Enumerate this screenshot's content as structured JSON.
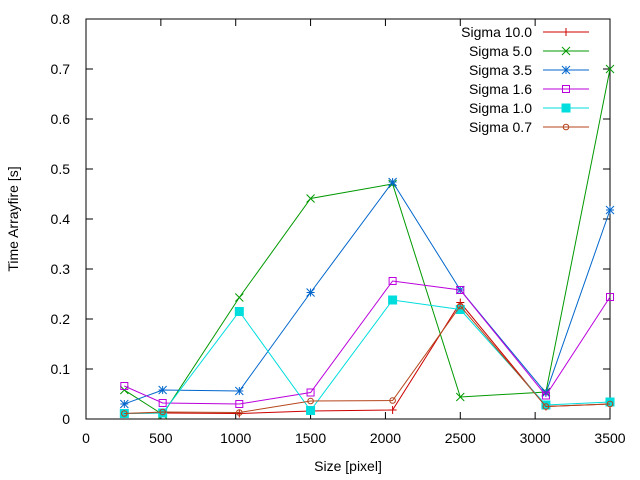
{
  "chart_data": {
    "type": "line",
    "xlabel": "Size [pixel]",
    "ylabel": "Time Arrayfire [s]",
    "xlim": [
      0,
      3500
    ],
    "ylim": [
      0,
      0.8
    ],
    "xticks": [
      0,
      500,
      1000,
      1500,
      2000,
      2500,
      3000,
      3500
    ],
    "yticks": [
      0,
      0.1,
      0.2,
      0.3,
      0.4,
      0.5,
      0.6,
      0.7,
      0.8
    ],
    "grid": false,
    "legend_position": "top-right",
    "x": [
      256,
      512,
      1024,
      1500,
      2048,
      2500,
      3072,
      3500
    ],
    "series": [
      {
        "name": "Sigma 10.0",
        "color": "#cc0000",
        "marker": "plus",
        "values": [
          0.011,
          0.012,
          0.011,
          0.016,
          0.018,
          0.233,
          0.025,
          0.03
        ]
      },
      {
        "name": "Sigma 5.0",
        "color": "#009900",
        "marker": "cross",
        "values": [
          0.058,
          0.009,
          0.243,
          0.441,
          0.47,
          0.044,
          0.054,
          0.7
        ]
      },
      {
        "name": "Sigma 3.5",
        "color": "#0066cc",
        "marker": "star",
        "values": [
          0.03,
          0.058,
          0.056,
          0.253,
          0.474,
          0.258,
          0.052,
          0.418
        ]
      },
      {
        "name": "Sigma 1.6",
        "color": "#bb00dd",
        "marker": "open-square",
        "values": [
          0.066,
          0.032,
          0.03,
          0.053,
          0.276,
          0.258,
          0.047,
          0.244
        ]
      },
      {
        "name": "Sigma 1.0",
        "color": "#00dddd",
        "marker": "filled-square",
        "values": [
          0.011,
          0.012,
          0.215,
          0.017,
          0.238,
          0.219,
          0.028,
          0.034
        ]
      },
      {
        "name": "Sigma 0.7",
        "color": "#b5451b",
        "marker": "open-circle",
        "values": [
          0.011,
          0.014,
          0.013,
          0.036,
          0.037,
          0.226,
          0.025,
          0.03
        ]
      }
    ]
  }
}
